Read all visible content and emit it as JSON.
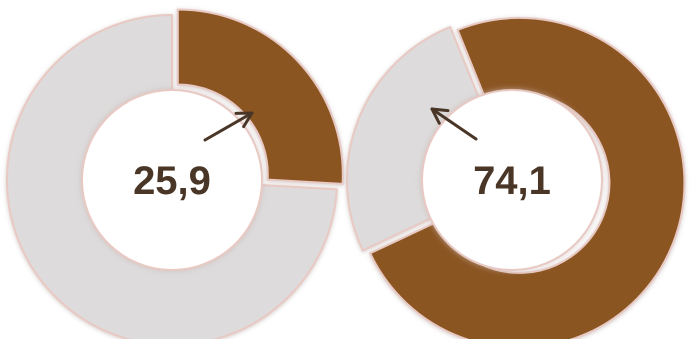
{
  "chart_data": [
    {
      "type": "pie",
      "series": [
        {
          "values": [
            25.9,
            74.1
          ]
        }
      ],
      "center_label": "25,9",
      "highlight_color": "#8B5522",
      "rest_color": "#DDDBDB"
    },
    {
      "type": "pie",
      "series": [
        {
          "values": [
            74.1,
            25.9
          ]
        }
      ],
      "center_label": "74,1",
      "highlight_color": "#8B5522",
      "rest_color": "#DDDBDB"
    }
  ],
  "colors": {
    "slice_border": "#E8C9C3",
    "arrow": "#4a3626",
    "hole": "#ffffff"
  }
}
